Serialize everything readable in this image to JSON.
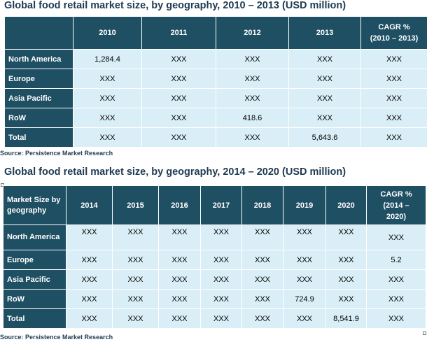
{
  "table1": {
    "title": "Global food retail market size, by geography, 2010 – 2013 (USD million)",
    "corner": "",
    "headers": [
      "2010",
      "2011",
      "2012",
      "2013",
      "CAGR %\n(2010 – 2013)"
    ],
    "rows": [
      {
        "label": "North America",
        "values": [
          "1,284.4",
          "XXX",
          "XXX",
          "XXX",
          "XXX"
        ]
      },
      {
        "label": "Europe",
        "values": [
          "XXX",
          "XXX",
          "XXX",
          "XXX",
          "XXX"
        ]
      },
      {
        "label": "Asia Pacific",
        "values": [
          "XXX",
          "XXX",
          "XXX",
          "XXX",
          "XXX"
        ]
      },
      {
        "label": "RoW",
        "values": [
          "XXX",
          "XXX",
          "418.6",
          "XXX",
          "XXX"
        ]
      },
      {
        "label": "Total",
        "values": [
          "XXX",
          "XXX",
          "XXX",
          "5,643.6",
          "XXX"
        ]
      }
    ],
    "source": "Source: Persistence Market Research"
  },
  "table2": {
    "title": "Global food retail market size, by geography, 2014 – 2020 (USD million)",
    "corner": "Market Size by geography",
    "headers": [
      "2014",
      "2015",
      "2016",
      "2017",
      "2018",
      "2019",
      "2020",
      "CAGR %\n(2014 –\n2020)"
    ],
    "rows": [
      {
        "label": "North America",
        "values": [
          "XXX",
          "XXX",
          "XXX",
          "XXX",
          "XXX",
          "XXX",
          "XXX",
          "XXX"
        ]
      },
      {
        "label": "Europe",
        "values": [
          "XXX",
          "XXX",
          "XXX",
          "XXX",
          "XXX",
          "XXX",
          "XXX",
          "5.2"
        ]
      },
      {
        "label": "Asia Pacific",
        "values": [
          "XXX",
          "XXX",
          "XXX",
          "XXX",
          "XXX",
          "XXX",
          "XXX",
          "XXX"
        ]
      },
      {
        "label": "RoW",
        "values": [
          "XXX",
          "XXX",
          "XXX",
          "XXX",
          "XXX",
          "724.9",
          "XXX",
          "XXX"
        ]
      },
      {
        "label": "Total",
        "values": [
          "XXX",
          "XXX",
          "XXX",
          "XXX",
          "XXX",
          "XXX",
          "8,541.9",
          "XXX"
        ]
      }
    ],
    "source": "Source: Persistence Market Research"
  }
}
